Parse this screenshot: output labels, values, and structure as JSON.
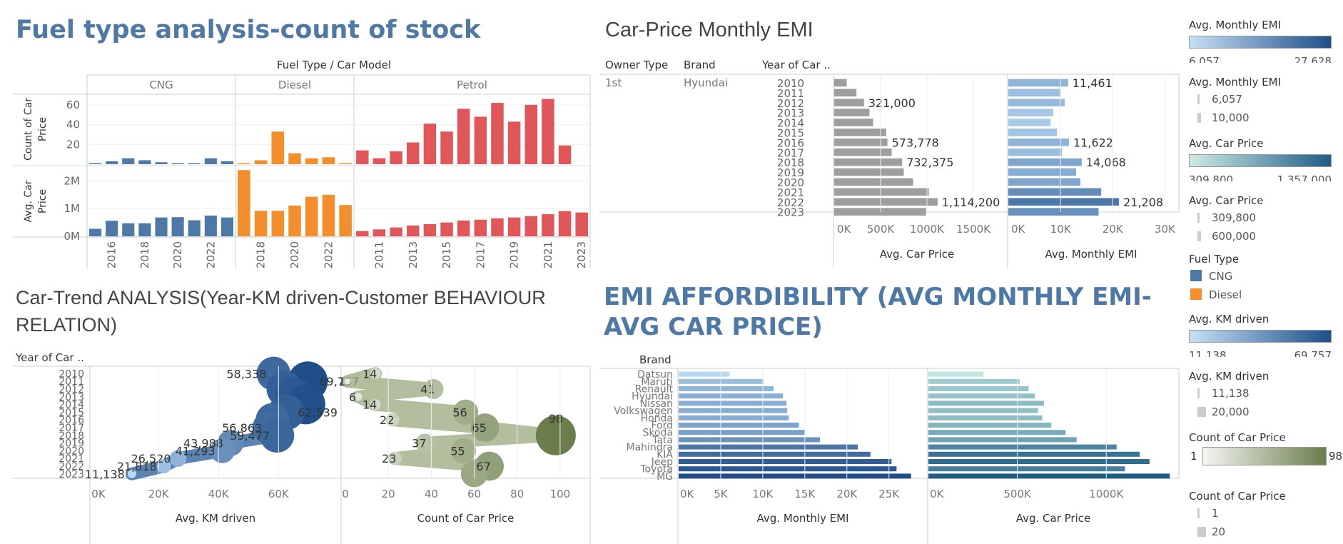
{
  "fuel_panel": {
    "title": "Fuel type analysis-count of stock",
    "header": "Fuel Type  /  Car Model",
    "facets": [
      "CNG",
      "Diesel",
      "Petrol"
    ],
    "row_labels": [
      "Count of Car Price",
      "Avg. Car Price"
    ],
    "count_ticks": [
      "60",
      "40",
      "20"
    ],
    "price_ticks": [
      "2M",
      "1M",
      "0M"
    ]
  },
  "emi_price_panel": {
    "title": "Car-Price Monthly EMI",
    "col_headers": [
      "Owner Type",
      "Brand",
      "Year of Car .."
    ],
    "owner": "1st",
    "brand": "Hyundai",
    "axis1_label": "Avg. Car Price",
    "axis1_ticks": [
      "0K",
      "500K",
      "1000K",
      "1500K"
    ],
    "axis2_label": "Avg. Monthly EMI",
    "axis2_ticks": [
      "0K",
      "10K",
      "20K",
      "30K"
    ]
  },
  "trend_panel": {
    "title_line1": "Car-Trend ANALYSIS(Year-KM driven-Customer BEHAVIOUR",
    "title_line2": "RELATION)",
    "row_header": "Year of Car ..",
    "axis1_label": "Avg. KM driven",
    "axis1_ticks": [
      "0K",
      "20K",
      "40K",
      "60K"
    ],
    "axis2_label": "Count of Car Price",
    "axis2_ticks": [
      "0",
      "20",
      "40",
      "60",
      "80",
      "100"
    ]
  },
  "afford_panel": {
    "title_line1": "EMI AFFORDIBILITY (AVG MONTHLY EMI-",
    "title_line2": "AVG CAR PRICE)",
    "row_header": "Brand",
    "axis1_label": "Avg. Monthly EMI",
    "axis1_ticks": [
      "0K",
      "5K",
      "10K",
      "15K",
      "20K",
      "25K"
    ],
    "axis2_label": "Avg. Car Price",
    "axis2_ticks": [
      "0K",
      "500K",
      "1000K"
    ]
  },
  "legends": {
    "emi_color": {
      "title": "Avg. Monthly EMI",
      "min": "6,057",
      "max": "27,628"
    },
    "emi_size": {
      "title": "Avg. Monthly EMI",
      "items": [
        "6,057",
        "10,000"
      ]
    },
    "price_color": {
      "title": "Avg. Car Price",
      "min": "309,800",
      "max": "1,357,000"
    },
    "price_size": {
      "title": "Avg. Car Price",
      "items": [
        "309,800",
        "600,000"
      ]
    },
    "fuel": {
      "title": "Fuel Type",
      "items": [
        "CNG",
        "Diesel"
      ]
    },
    "km_color": {
      "title": "Avg. KM driven",
      "min": "11,138",
      "max": "69,757"
    },
    "km_size": {
      "title": "Avg. KM driven",
      "items": [
        "11,138",
        "20,000"
      ]
    },
    "count_color": {
      "title": "Count of Car Price",
      "min": "1",
      "max": "98"
    },
    "count_size": {
      "title": "Count of Car Price",
      "items": [
        "1",
        "20"
      ]
    }
  },
  "colors": {
    "cng": "#4e79a7",
    "diesel": "#f28e2b",
    "petrol": "#e15759",
    "gray_bar": "#9e9e9e",
    "blue_dark": "#1f4e89",
    "blue_light": "#b7d8f3",
    "teal_dark": "#1f5d86",
    "teal_light": "#bfe6e2",
    "green_dark": "#6b7d4a",
    "green_light": "#e6ece0",
    "title_blue": "#4e79a7"
  },
  "chart_data": [
    {
      "type": "bar",
      "name": "fuel-count",
      "ylabel": "Count of Car Price",
      "ylim": [
        0,
        70
      ],
      "series": [
        {
          "name": "CNG",
          "x": [
            "2015",
            "2016",
            "2017",
            "2018",
            "2019",
            "2020",
            "2021",
            "2022",
            "2023"
          ],
          "values": [
            1,
            3,
            6,
            4,
            2,
            1,
            1,
            6,
            3
          ]
        },
        {
          "name": "Diesel",
          "x": [
            "2017",
            "2018",
            "2019",
            "2020",
            "2021",
            "2022",
            "2023"
          ],
          "values": [
            1,
            4,
            33,
            11,
            6,
            7,
            1
          ]
        },
        {
          "name": "Petrol",
          "x": [
            "2010",
            "2011",
            "2012",
            "2013",
            "2014",
            "2015",
            "2016",
            "2017",
            "2018",
            "2019",
            "2020",
            "2021",
            "2022",
            "2023"
          ],
          "values": [
            14,
            6,
            13,
            22,
            41,
            33,
            56,
            48,
            62,
            43,
            60,
            66,
            19,
            0
          ]
        }
      ]
    },
    {
      "type": "bar",
      "name": "fuel-avg-price",
      "ylabel": "Avg. Car Price",
      "ylim": [
        0,
        2500000
      ],
      "series": [
        {
          "name": "CNG",
          "x": [
            "2015",
            "2016",
            "2017",
            "2018",
            "2019",
            "2020",
            "2021",
            "2022",
            "2023"
          ],
          "values": [
            270000,
            560000,
            470000,
            470000,
            680000,
            690000,
            580000,
            750000,
            680000
          ]
        },
        {
          "name": "Diesel",
          "x": [
            "2017",
            "2018",
            "2019",
            "2020",
            "2021",
            "2022",
            "2023"
          ],
          "values": [
            2390000,
            920000,
            920000,
            1110000,
            1430000,
            1500000,
            1130000
          ]
        },
        {
          "name": "Petrol",
          "x": [
            "2010",
            "2011",
            "2012",
            "2013",
            "2014",
            "2015",
            "2016",
            "2017",
            "2018",
            "2019",
            "2020",
            "2021",
            "2022",
            "2023"
          ],
          "values": [
            190000,
            250000,
            320000,
            390000,
            440000,
            500000,
            570000,
            600000,
            650000,
            680000,
            730000,
            800000,
            910000,
            860000
          ]
        }
      ]
    },
    {
      "type": "bar",
      "name": "hyundai-avg-car-price",
      "categories": [
        "2010",
        "2011",
        "2012",
        "2013",
        "2014",
        "2015",
        "2016",
        "2017",
        "2018",
        "2019",
        "2020",
        "2021",
        "2022",
        "2023"
      ],
      "values": [
        135000,
        240000,
        321000,
        380000,
        420000,
        560000,
        573778,
        620000,
        732375,
        750000,
        850000,
        1020000,
        1114200,
        990000
      ],
      "labels": [
        "",
        "",
        "321,000",
        "",
        "",
        "",
        "573,778",
        "",
        "732,375",
        "",
        "",
        "",
        "1,114,200",
        ""
      ],
      "xlabel": "Avg. Car Price",
      "xlim": [
        0,
        1800000
      ]
    },
    {
      "type": "bar",
      "name": "hyundai-avg-monthly-emi",
      "categories": [
        "2010",
        "2011",
        "2012",
        "2013",
        "2014",
        "2015",
        "2016",
        "2017",
        "2018",
        "2019",
        "2020",
        "2021",
        "2022",
        "2023"
      ],
      "values": [
        11461,
        10000,
        10800,
        8600,
        8100,
        9300,
        11622,
        10300,
        14068,
        13000,
        13800,
        17800,
        21208,
        17300
      ],
      "labels": [
        "11,461",
        "",
        "",
        "",
        "",
        "",
        "11,622",
        "",
        "14,068",
        "",
        "",
        "",
        "21,208",
        ""
      ],
      "xlabel": "Avg. Monthly EMI",
      "xlim": [
        0,
        32000
      ]
    },
    {
      "type": "scatter",
      "name": "year-avg-km-driven",
      "categories": [
        "2010",
        "2011",
        "2012",
        "2013",
        "2014",
        "2015",
        "2016",
        "2017",
        "2018",
        "2019",
        "2020",
        "2021",
        "2022",
        "2023"
      ],
      "values": [
        58338,
        69757,
        62000,
        65000,
        69000,
        62539,
        58000,
        56863,
        59477,
        43988,
        41293,
        26520,
        21818,
        11138
      ],
      "labels": [
        "58,338",
        "69,757",
        "",
        "",
        "",
        "62,539",
        "",
        "56,863",
        "59,477",
        "43,988",
        "41,293",
        "26,520",
        "21,818",
        "11,138"
      ],
      "xlabel": "Avg. KM driven",
      "xlim": [
        0,
        78000
      ]
    },
    {
      "type": "scatter",
      "name": "year-count-of-car-price",
      "categories": [
        "2010",
        "2011",
        "2012",
        "2013",
        "2014",
        "2015",
        "2016",
        "2017",
        "2018",
        "2019",
        "2020",
        "2021",
        "2022",
        "2023"
      ],
      "values": [
        14,
        1,
        41,
        6,
        14,
        56,
        22,
        65,
        98,
        37,
        55,
        23,
        67,
        60
      ],
      "labels": [
        "14",
        "1",
        "41",
        "6",
        "14",
        "56",
        "22",
        "65",
        "98",
        "37",
        "55",
        "23",
        "67",
        ""
      ],
      "xlabel": "Count of Car Price",
      "xlim": [
        0,
        110
      ]
    },
    {
      "type": "bar",
      "name": "brand-avg-monthly-emi",
      "categories": [
        "Datsun",
        "Maruti",
        "Renault",
        "Hyundai",
        "Nissan",
        "Volkswagen",
        "Honda",
        "Ford",
        "Skoda",
        "Tata",
        "Mahindra",
        "KIA",
        "Jeep",
        "Toyota",
        "MG"
      ],
      "values": [
        6057,
        10100,
        11300,
        12400,
        12800,
        12900,
        13100,
        14300,
        15000,
        16800,
        21300,
        22800,
        25300,
        25900,
        27628
      ],
      "xlabel": "Avg. Monthly EMI",
      "xlim": [
        0,
        28500
      ]
    },
    {
      "type": "bar",
      "name": "brand-avg-car-price",
      "categories": [
        "Datsun",
        "Maruti",
        "Renault",
        "Hyundai",
        "Nissan",
        "Volkswagen",
        "Honda",
        "Ford",
        "Skoda",
        "Tata",
        "Mahindra",
        "KIA",
        "Jeep",
        "Toyota",
        "MG"
      ],
      "values": [
        309800,
        513000,
        563000,
        598000,
        650000,
        616000,
        640000,
        691000,
        771000,
        833000,
        1058000,
        1188000,
        1243000,
        1105000,
        1357000
      ],
      "xlabel": "Avg. Car Price",
      "xlim": [
        0,
        1380000
      ]
    }
  ]
}
